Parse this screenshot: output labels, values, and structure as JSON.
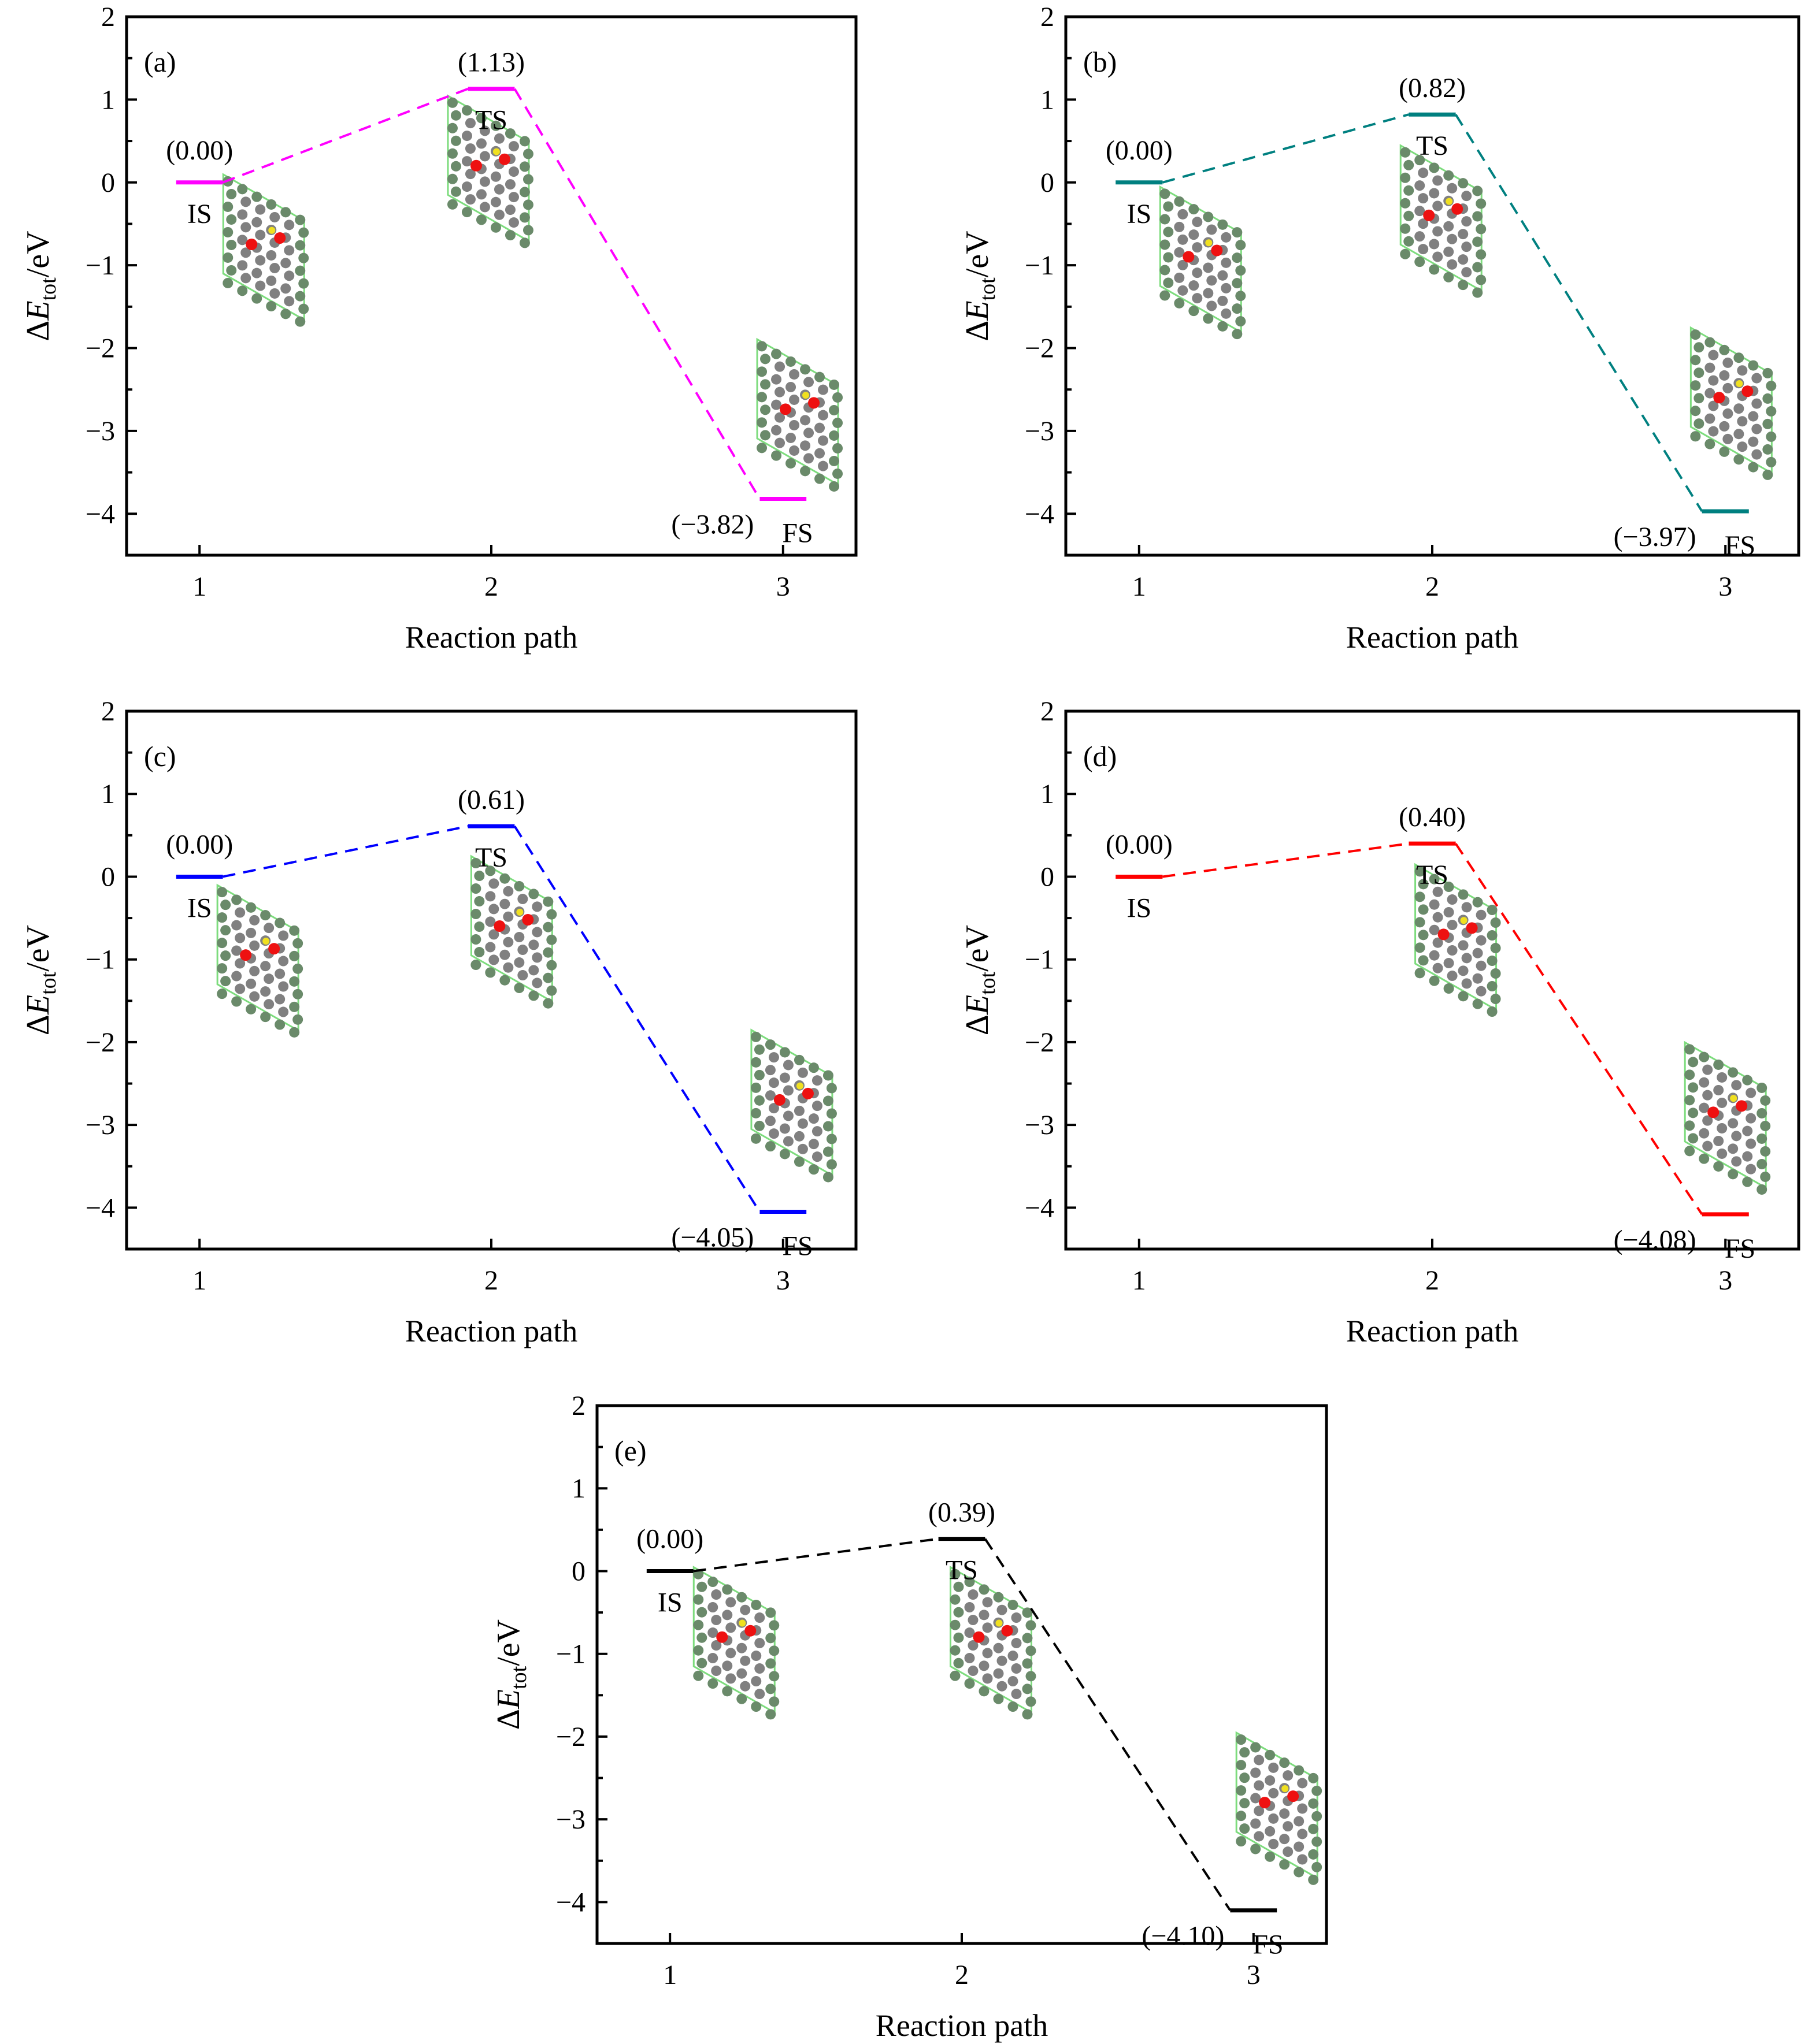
{
  "chart_data": [
    {
      "type": "line",
      "panel_label": "(a)",
      "color": "#ff00ff",
      "x": [
        1,
        2,
        3
      ],
      "values": [
        0.0,
        1.13,
        -3.82
      ],
      "value_labels": [
        "(0.00)",
        "(1.13)",
        "(−3.82)"
      ],
      "state_labels": [
        "IS",
        "TS",
        "FS"
      ],
      "xlabel": "Reaction path",
      "ylabel": "ΔE_tot/eV",
      "xlim": [
        0.75,
        3.25
      ],
      "ylim": [
        -4.5,
        2
      ],
      "xticks": [
        1,
        2,
        3
      ],
      "yticks": [
        -4,
        -3,
        -2,
        -1,
        0,
        1,
        2
      ],
      "line_style": "dashed connectors, solid level bars",
      "grid": false
    },
    {
      "type": "line",
      "panel_label": "(b)",
      "color": "#008080",
      "x": [
        1,
        2,
        3
      ],
      "values": [
        0.0,
        0.82,
        -3.97
      ],
      "value_labels": [
        "(0.00)",
        "(0.82)",
        "(−3.97)"
      ],
      "state_labels": [
        "IS",
        "TS",
        "FS"
      ],
      "xlabel": "Reaction path",
      "ylabel": "ΔE_tot/eV",
      "xlim": [
        0.75,
        3.25
      ],
      "ylim": [
        -4.5,
        2
      ],
      "xticks": [
        1,
        2,
        3
      ],
      "yticks": [
        -4,
        -3,
        -2,
        -1,
        0,
        1,
        2
      ],
      "grid": false
    },
    {
      "type": "line",
      "panel_label": "(c)",
      "color": "#0000ff",
      "x": [
        1,
        2,
        3
      ],
      "values": [
        0.0,
        0.61,
        -4.05
      ],
      "value_labels": [
        "(0.00)",
        "(0.61)",
        "(−4.05)"
      ],
      "state_labels": [
        "IS",
        "TS",
        "FS"
      ],
      "xlabel": "Reaction path",
      "ylabel": "ΔE_tot/eV",
      "xlim": [
        0.75,
        3.25
      ],
      "ylim": [
        -4.5,
        2
      ],
      "xticks": [
        1,
        2,
        3
      ],
      "yticks": [
        -4,
        -3,
        -2,
        -1,
        0,
        1,
        2
      ],
      "grid": false
    },
    {
      "type": "line",
      "panel_label": "(d)",
      "color": "#ff0000",
      "x": [
        1,
        2,
        3
      ],
      "values": [
        0.0,
        0.4,
        -4.08
      ],
      "value_labels": [
        "(0.00)",
        "(0.40)",
        "(−4.08)"
      ],
      "state_labels": [
        "IS",
        "TS",
        "FS"
      ],
      "xlabel": "Reaction path",
      "ylabel": "ΔE_tot/eV",
      "xlim": [
        0.75,
        3.25
      ],
      "ylim": [
        -4.5,
        2
      ],
      "xticks": [
        1,
        2,
        3
      ],
      "yticks": [
        -4,
        -3,
        -2,
        -1,
        0,
        1,
        2
      ],
      "grid": false
    },
    {
      "type": "line",
      "panel_label": "(e)",
      "color": "#000000",
      "x": [
        1,
        2,
        3
      ],
      "values": [
        0.0,
        0.39,
        -4.1
      ],
      "value_labels": [
        "(0.00)",
        "(0.39)",
        "(−4.10)"
      ],
      "state_labels": [
        "IS",
        "TS",
        "FS"
      ],
      "xlabel": "Reaction path",
      "ylabel": "ΔE_tot/eV",
      "xlim": [
        0.75,
        3.25
      ],
      "ylim": [
        -4.5,
        2
      ],
      "xticks": [
        1,
        2,
        3
      ],
      "yticks": [
        -4,
        -3,
        -2,
        -1,
        0,
        1,
        2
      ],
      "grid": false
    }
  ],
  "inset_colors": {
    "frame": "#7ddc7d",
    "atom": "#808080",
    "edge_atom": "#6a8a6a",
    "adsorbate": "#ee1111",
    "dopant": "#f0e020"
  }
}
